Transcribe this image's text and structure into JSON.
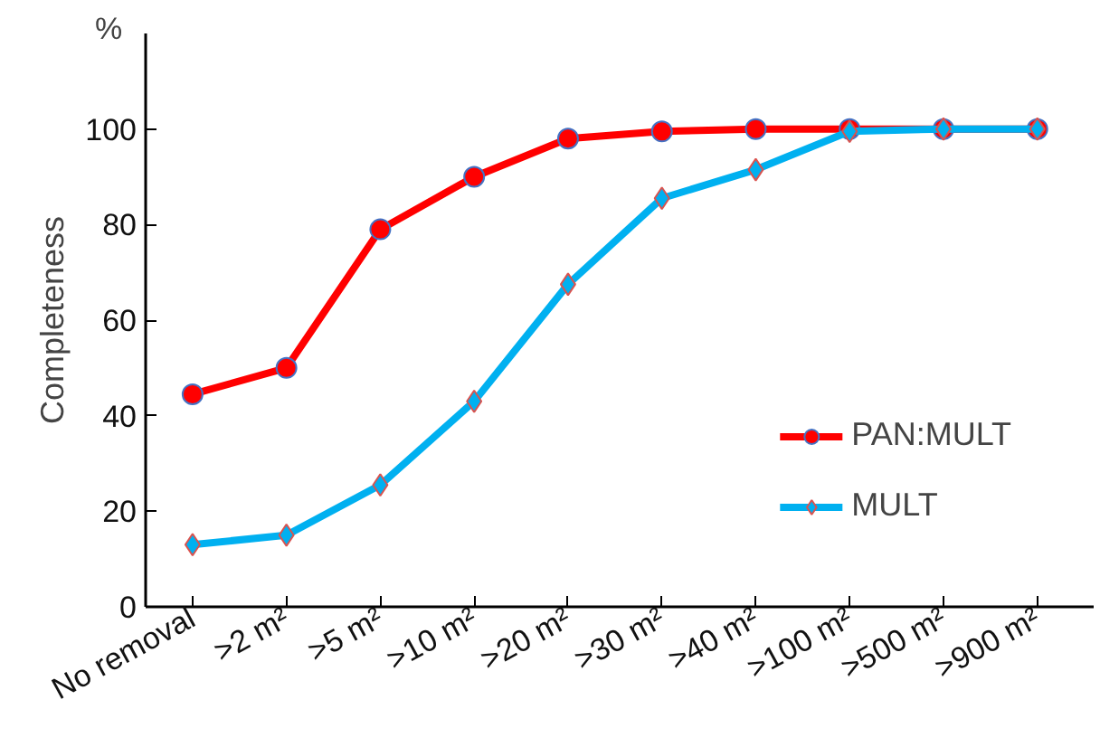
{
  "chart_data": {
    "type": "line",
    "ylabel": "Completeness",
    "annotations": [
      "%"
    ],
    "categories": [
      "No removal",
      ">2 m²",
      ">5 m²",
      ">10 m²",
      ">20 m²",
      ">30 m²",
      ">40 m²",
      ">100 m²",
      ">500 m²",
      ">900 m²"
    ],
    "series": [
      {
        "name": "PAN:MULT",
        "color": "#ff0000",
        "marker": "circle",
        "values": [
          44.5,
          50,
          79,
          90,
          98,
          99.5,
          100,
          100,
          100,
          100
        ]
      },
      {
        "name": "MULT",
        "color": "#00b0f0",
        "marker": "diamond",
        "values": [
          13,
          15,
          25.5,
          43,
          67.5,
          85.5,
          91.5,
          99.5,
          100,
          100
        ]
      }
    ],
    "ylim": [
      0,
      120
    ],
    "yticks": [
      0,
      20,
      40,
      60,
      80,
      100
    ],
    "grid": false,
    "legend": "bottom right"
  }
}
